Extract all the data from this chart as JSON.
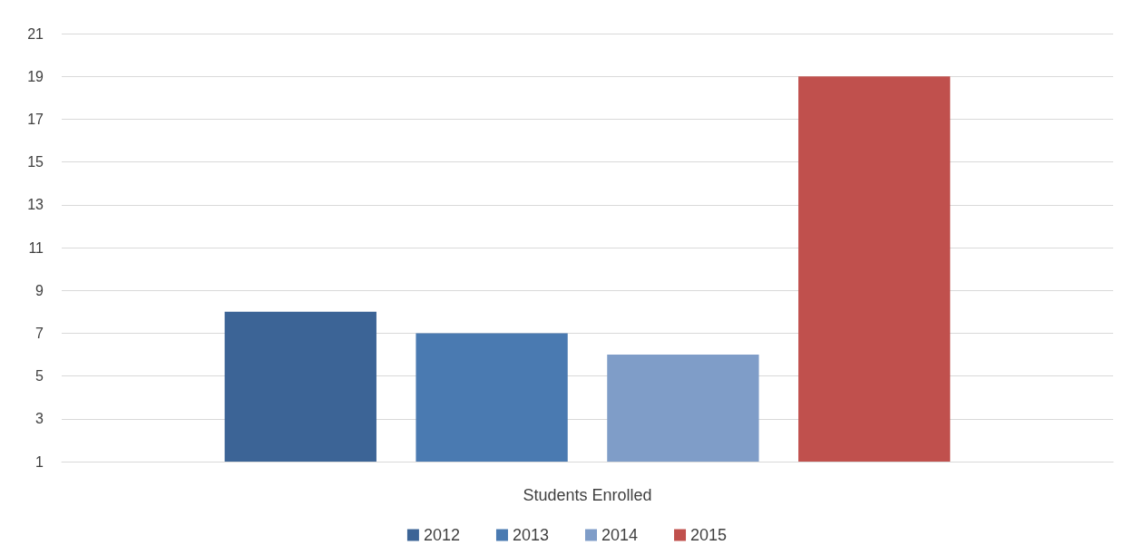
{
  "chart_data": {
    "type": "bar",
    "categories": [
      "Students Enrolled"
    ],
    "series": [
      {
        "name": "2012",
        "color": "#3c6496",
        "values": [
          8
        ]
      },
      {
        "name": "2013",
        "color": "#4a7ab1",
        "values": [
          7
        ]
      },
      {
        "name": "2014",
        "color": "#7f9dc8",
        "values": [
          6
        ]
      },
      {
        "name": "2015",
        "color": "#c0504d",
        "values": [
          19
        ]
      }
    ],
    "ylim": [
      1,
      21
    ],
    "yticks": [
      1,
      3,
      5,
      7,
      9,
      11,
      13,
      15,
      17,
      19,
      21
    ],
    "grid": "y",
    "legend": "bottom"
  }
}
